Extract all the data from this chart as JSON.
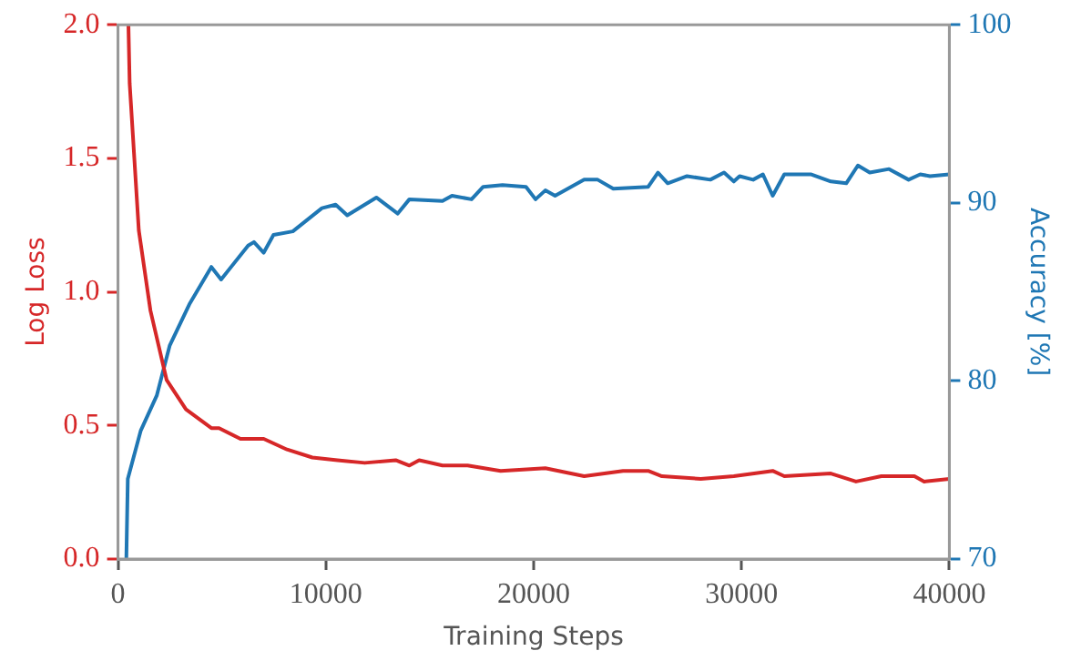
{
  "chart_data": {
    "type": "line",
    "xlabel": "Training Steps",
    "ylabel": "Log Loss",
    "y2label": "Accuracy [%]",
    "xlim": [
      0,
      40000
    ],
    "xticks": [
      0,
      10000,
      20000,
      30000,
      40000
    ],
    "ylim": [
      0,
      2
    ],
    "yticks": [
      {
        "value": 0,
        "label": "0.0"
      },
      {
        "value": 0.5,
        "label": "0.5"
      },
      {
        "value": 1,
        "label": "1.0"
      },
      {
        "value": 1.5,
        "label": "1.5"
      },
      {
        "value": 2,
        "label": "2.0"
      }
    ],
    "y2lim": [
      70,
      100
    ],
    "y2ticks": [
      70,
      80,
      90,
      100
    ],
    "grid": false,
    "legend": false,
    "marker": "none",
    "line_style": "solid",
    "series": [
      {
        "color": "#d62728",
        "x": [
          500,
          560,
          1000,
          1560,
          2340,
          3270,
          4490,
          4860,
          5890,
          7010,
          8130,
          9350,
          10560,
          11870,
          13360,
          14020,
          14490,
          15610,
          16820,
          18410,
          20560,
          22430,
          24300,
          25510,
          26170,
          28040,
          29630,
          31500,
          32060,
          34300,
          35510,
          36730,
          38320,
          38790,
          40000
        ],
        "values": [
          2.0,
          1.78,
          1.23,
          0.93,
          0.67,
          0.56,
          0.49,
          0.49,
          0.45,
          0.45,
          0.41,
          0.38,
          0.37,
          0.36,
          0.37,
          0.35,
          0.37,
          0.35,
          0.35,
          0.33,
          0.34,
          0.31,
          0.33,
          0.33,
          0.31,
          0.3,
          0.31,
          0.33,
          0.31,
          0.32,
          0.29,
          0.31,
          0.31,
          0.29,
          0.3
        ]
      },
      {
        "color": "#1f77b4",
        "axis": "y2",
        "x": [
          400,
          470,
          1090,
          1870,
          2490,
          3430,
          4490,
          4960,
          6260,
          6540,
          7010,
          7480,
          8410,
          9810,
          10470,
          11030,
          12430,
          13460,
          14020,
          15610,
          16070,
          17010,
          17570,
          18500,
          19630,
          20090,
          20560,
          21030,
          22430,
          23080,
          23830,
          25510,
          25980,
          26450,
          27380,
          28500,
          29160,
          29630,
          29910,
          30560,
          31030,
          31500,
          32060,
          33360,
          34300,
          35040,
          35600,
          36170,
          37100,
          38040,
          38600,
          39070,
          40000
        ],
        "values": [
          70,
          74.5,
          77.2,
          79.2,
          82.0,
          84.3,
          86.4,
          85.7,
          87.6,
          87.8,
          87.2,
          88.2,
          88.4,
          89.7,
          89.9,
          89.3,
          90.3,
          89.4,
          90.2,
          90.1,
          90.4,
          90.2,
          90.9,
          91.0,
          90.9,
          90.2,
          90.7,
          90.4,
          91.3,
          91.3,
          90.8,
          90.9,
          91.7,
          91.1,
          91.5,
          91.3,
          91.7,
          91.2,
          91.5,
          91.3,
          91.6,
          90.4,
          91.6,
          91.6,
          91.2,
          91.1,
          92.1,
          91.7,
          91.9,
          91.3,
          91.6,
          91.5,
          91.6
        ]
      }
    ]
  }
}
